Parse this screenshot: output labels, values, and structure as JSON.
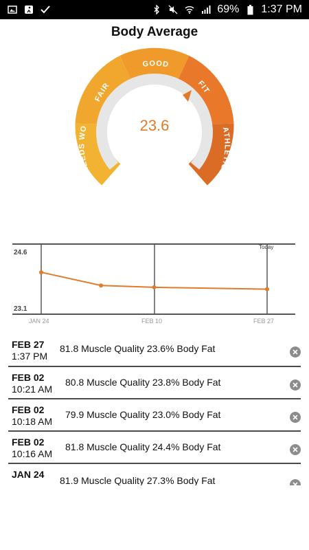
{
  "status_bar": {
    "battery": "69%",
    "time": "1:37 PM"
  },
  "header": {
    "title": "Body Average"
  },
  "gauge": {
    "value": "23.6",
    "segments": [
      {
        "label": "NEEDS WORK",
        "color": "#f2b333"
      },
      {
        "label": "FAIR",
        "color": "#f1a72d"
      },
      {
        "label": "GOOD",
        "color": "#f09a2b"
      },
      {
        "label": "FIT",
        "color": "#e9782a"
      },
      {
        "label": "ATHLETIC",
        "color": "#db6c25"
      }
    ]
  },
  "chart_data": {
    "type": "line",
    "x": [
      "JAN 24",
      "FEB 02",
      "FEB 10",
      "FEB 27"
    ],
    "y": [
      24.05,
      23.7,
      23.65,
      23.6
    ],
    "y_tick_labels": [
      "24.6",
      "23.1"
    ],
    "x_tick_labels": [
      "JAN 24",
      "FEB 10",
      "FEB 27"
    ],
    "today_label": "Today",
    "ylim": [
      23.1,
      24.6
    ],
    "color": "#e27a2a"
  },
  "entries": [
    {
      "date": "FEB 27",
      "time": "1:37 PM",
      "summary": "81.8 Muscle Quality 23.6% Body Fat"
    },
    {
      "date": "FEB 02",
      "time": "10:21 AM",
      "summary": "80.8 Muscle Quality 23.8% Body Fat"
    },
    {
      "date": "FEB 02",
      "time": "10:18 AM",
      "summary": "79.9 Muscle Quality 23.0% Body Fat"
    },
    {
      "date": "FEB 02",
      "time": "10:16 AM",
      "summary": "81.8 Muscle Quality 24.4% Body Fat"
    },
    {
      "date": "JAN 24",
      "time": "",
      "summary": "81.9 Muscle Quality 27.3% Body Fat"
    }
  ]
}
